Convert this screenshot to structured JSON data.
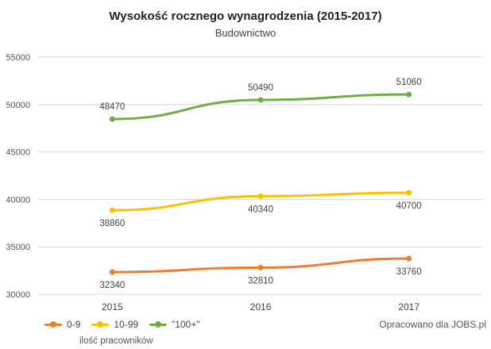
{
  "chart_data": {
    "type": "line",
    "title": "Wysokość rocznego wynagrodzenia (2015-2017)",
    "subtitle": "Budownictwo",
    "categories": [
      "2015",
      "2016",
      "2017"
    ],
    "ylim": [
      30000,
      55000
    ],
    "yticks": [
      30000,
      35000,
      40000,
      45000,
      50000,
      55000
    ],
    "grid": true,
    "legend_position": "bottom-left",
    "legend_note": "ilość pracowników",
    "source": "Opracowano dla JOBS.pl",
    "series": [
      {
        "name": "0-9",
        "values": [
          32340,
          32810,
          33760
        ],
        "color": "#ed7d31",
        "label_position": "below"
      },
      {
        "name": "10-99",
        "values": [
          38860,
          40340,
          40700
        ],
        "color": "#ffc000",
        "label_position": "below"
      },
      {
        "name": "\"100+\"",
        "values": [
          48470,
          50490,
          51060
        ],
        "color": "#70ad47",
        "label_position": "above"
      }
    ]
  }
}
